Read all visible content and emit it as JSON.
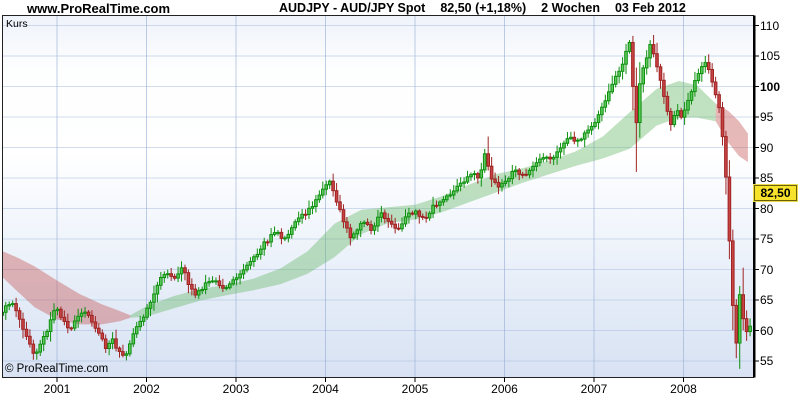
{
  "header": {
    "brand": "www.ProRealTime.com",
    "title": {
      "symbol": "AUDJPY - AUD/JPY Spot",
      "last_price": "82,50 (+1,18%)",
      "timeframe": "2 Wochen",
      "date": "03 Feb 2012"
    }
  },
  "chart": {
    "panel_label": "Kurs",
    "watermark": "© ProRealTime.com",
    "last_price_badge": "82,50",
    "colors": {
      "up_stroke": "#0e8f0e",
      "up_fill": "#5cc75c",
      "down_stroke": "#9e2423",
      "down_fill": "#c64443",
      "band_green": "rgba(92,178,92,0.38)",
      "band_red": "rgba(198,88,88,0.42)",
      "grid_h": "rgba(165,185,220,0.50)",
      "grid_v": "rgba(150,172,212,0.60)",
      "border": "#222222",
      "axis_line": "#000000",
      "tick": "#000000",
      "badge_bg": "#F8E32C",
      "badge_border": "#6b6108",
      "background_gradient": [
        "#eff3fb",
        "#fdfefe",
        "#ffffff",
        "#f2f6fc",
        "#e3ebf7",
        "#d8e2f3"
      ]
    }
  },
  "chart_data": {
    "type": "candlestick",
    "title": "AUDJPY - AUD/JPY Spot, 2 Wochen",
    "ylabel": "Kurs",
    "last_price": 82.5,
    "change_pct": "+1,18%",
    "y_axis": {
      "ticks": [
        55,
        60,
        65,
        70,
        75,
        80,
        85,
        90,
        95,
        100,
        105,
        110
      ],
      "bold_tick": 100,
      "range": [
        52.4,
        111.6
      ]
    },
    "x_axis": {
      "ticks": [
        2001,
        2002,
        2003,
        2004,
        2005,
        2006,
        2007,
        2008
      ],
      "range": [
        2000.36,
        2008.78
      ]
    },
    "grid": true,
    "price_path": [
      [
        2000.37,
        62.5
      ],
      [
        2000.45,
        63.8
      ],
      [
        2000.52,
        64.5
      ],
      [
        2000.6,
        62.0
      ],
      [
        2000.68,
        59.0
      ],
      [
        2000.76,
        55.9
      ],
      [
        2000.84,
        57.8
      ],
      [
        2000.92,
        60.5
      ],
      [
        2001.0,
        63.6
      ],
      [
        2001.08,
        62.2
      ],
      [
        2001.16,
        60.2
      ],
      [
        2001.24,
        62.3
      ],
      [
        2001.32,
        63.6
      ],
      [
        2001.4,
        61.8
      ],
      [
        2001.48,
        59.5
      ],
      [
        2001.56,
        57.3
      ],
      [
        2001.64,
        58.3
      ],
      [
        2001.72,
        56.3
      ],
      [
        2001.78,
        56.0
      ],
      [
        2001.86,
        58.8
      ],
      [
        2001.94,
        61.3
      ],
      [
        2002.02,
        63.2
      ],
      [
        2002.1,
        65.8
      ],
      [
        2002.18,
        68.6
      ],
      [
        2002.26,
        69.6
      ],
      [
        2002.34,
        68.2
      ],
      [
        2002.42,
        70.3
      ],
      [
        2002.5,
        67.2
      ],
      [
        2002.58,
        65.9
      ],
      [
        2002.68,
        67.6
      ],
      [
        2002.78,
        68.6
      ],
      [
        2002.88,
        66.9
      ],
      [
        2002.98,
        68.2
      ],
      [
        2003.1,
        70.0
      ],
      [
        2003.22,
        72.0
      ],
      [
        2003.34,
        74.3
      ],
      [
        2003.46,
        76.2
      ],
      [
        2003.56,
        75.0
      ],
      [
        2003.68,
        77.8
      ],
      [
        2003.8,
        79.3
      ],
      [
        2003.9,
        81.0
      ],
      [
        2004.0,
        83.3
      ],
      [
        2004.06,
        84.6
      ],
      [
        2004.14,
        81.5
      ],
      [
        2004.22,
        78.0
      ],
      [
        2004.3,
        74.8
      ],
      [
        2004.38,
        76.8
      ],
      [
        2004.46,
        78.2
      ],
      [
        2004.54,
        76.2
      ],
      [
        2004.62,
        79.4
      ],
      [
        2004.72,
        77.8
      ],
      [
        2004.82,
        76.6
      ],
      [
        2004.92,
        78.6
      ],
      [
        2005.02,
        79.6
      ],
      [
        2005.12,
        78.2
      ],
      [
        2005.22,
        80.2
      ],
      [
        2005.34,
        81.8
      ],
      [
        2005.46,
        82.8
      ],
      [
        2005.58,
        84.8
      ],
      [
        2005.66,
        85.8
      ],
      [
        2005.74,
        84.8
      ],
      [
        2005.8,
        89.3
      ],
      [
        2005.86,
        85.2
      ],
      [
        2005.94,
        83.6
      ],
      [
        2006.04,
        84.8
      ],
      [
        2006.14,
        86.2
      ],
      [
        2006.24,
        85.2
      ],
      [
        2006.34,
        87.0
      ],
      [
        2006.44,
        88.6
      ],
      [
        2006.54,
        88.0
      ],
      [
        2006.64,
        90.0
      ],
      [
        2006.74,
        91.6
      ],
      [
        2006.84,
        91.0
      ],
      [
        2006.94,
        92.6
      ],
      [
        2007.04,
        94.6
      ],
      [
        2007.14,
        97.6
      ],
      [
        2007.24,
        100.8
      ],
      [
        2007.32,
        103.0
      ],
      [
        2007.4,
        106.8
      ],
      [
        2007.44,
        107.2
      ],
      [
        2007.475,
        88.5
      ],
      [
        2007.51,
        99.5
      ],
      [
        2007.58,
        103.5
      ],
      [
        2007.64,
        106.8
      ],
      [
        2007.7,
        104.6
      ],
      [
        2007.76,
        101.2
      ],
      [
        2007.82,
        96.6
      ],
      [
        2007.88,
        93.6
      ],
      [
        2007.94,
        96.2
      ],
      [
        2008.0,
        94.6
      ],
      [
        2008.06,
        97.6
      ],
      [
        2008.13,
        100.0
      ],
      [
        2008.19,
        102.2
      ],
      [
        2008.25,
        104.2
      ],
      [
        2008.31,
        102.4
      ],
      [
        2008.37,
        99.2
      ],
      [
        2008.43,
        95.4
      ],
      [
        2008.49,
        86.0
      ],
      [
        2008.53,
        75.5
      ],
      [
        2008.57,
        64.0
      ],
      [
        2008.61,
        58.0
      ],
      [
        2008.65,
        66.2
      ],
      [
        2008.69,
        61.2
      ],
      [
        2008.73,
        59.6
      ],
      [
        2008.77,
        60.6
      ]
    ],
    "wick_events": [
      {
        "y": 2000.76,
        "lo": 55.2
      },
      {
        "y": 2001.78,
        "lo": 55.1
      },
      {
        "y": 2005.8,
        "hi": 91.8
      },
      {
        "y": 2007.44,
        "hi": 108.3
      },
      {
        "y": 2007.475,
        "lo": 86.0
      },
      {
        "y": 2007.64,
        "hi": 107.6
      },
      {
        "y": 2008.25,
        "hi": 105.0
      },
      {
        "y": 2008.61,
        "lo": 55.0
      },
      {
        "y": 2008.65,
        "hi": 70.3
      }
    ],
    "ma_band": [
      [
        2000.36,
        73.2,
        69.2
      ],
      [
        2000.55,
        72.0,
        66.5
      ],
      [
        2000.75,
        70.5,
        63.8
      ],
      [
        2001.0,
        68.2,
        61.8
      ],
      [
        2001.25,
        66.0,
        61.0
      ],
      [
        2001.5,
        64.3,
        61.0
      ],
      [
        2001.7,
        63.2,
        61.5
      ],
      [
        2001.82,
        62.5,
        62.1
      ],
      [
        2002.0,
        64.0,
        62.3
      ],
      [
        2002.3,
        65.6,
        63.6
      ],
      [
        2002.6,
        66.8,
        64.9
      ],
      [
        2002.9,
        67.5,
        65.8
      ],
      [
        2003.2,
        68.5,
        66.6
      ],
      [
        2003.5,
        70.2,
        67.6
      ],
      [
        2003.8,
        73.0,
        69.3
      ],
      [
        2004.1,
        77.5,
        72.0
      ],
      [
        2004.4,
        79.8,
        75.8
      ],
      [
        2004.7,
        80.2,
        77.6
      ],
      [
        2005.0,
        80.6,
        78.2
      ],
      [
        2005.3,
        82.0,
        79.4
      ],
      [
        2005.6,
        83.9,
        81.0
      ],
      [
        2005.9,
        85.6,
        82.6
      ],
      [
        2006.2,
        86.6,
        84.2
      ],
      [
        2006.5,
        87.8,
        85.6
      ],
      [
        2006.8,
        89.4,
        87.0
      ],
      [
        2007.1,
        91.8,
        88.2
      ],
      [
        2007.4,
        95.8,
        89.8
      ],
      [
        2007.7,
        99.6,
        93.6
      ],
      [
        2007.95,
        100.9,
        94.9
      ],
      [
        2008.15,
        100.2,
        94.9
      ],
      [
        2008.36,
        97.2,
        94.3
      ],
      [
        2008.5,
        96.0,
        90.8
      ],
      [
        2008.62,
        94.3,
        88.6
      ],
      [
        2008.72,
        92.3,
        87.6
      ]
    ],
    "band_phases": [
      {
        "from": 2000.36,
        "to": 2001.82,
        "color": "red"
      },
      {
        "from": 2001.82,
        "to": 2008.36,
        "color": "green"
      },
      {
        "from": 2008.36,
        "to": 2008.72,
        "color": "red"
      }
    ]
  }
}
